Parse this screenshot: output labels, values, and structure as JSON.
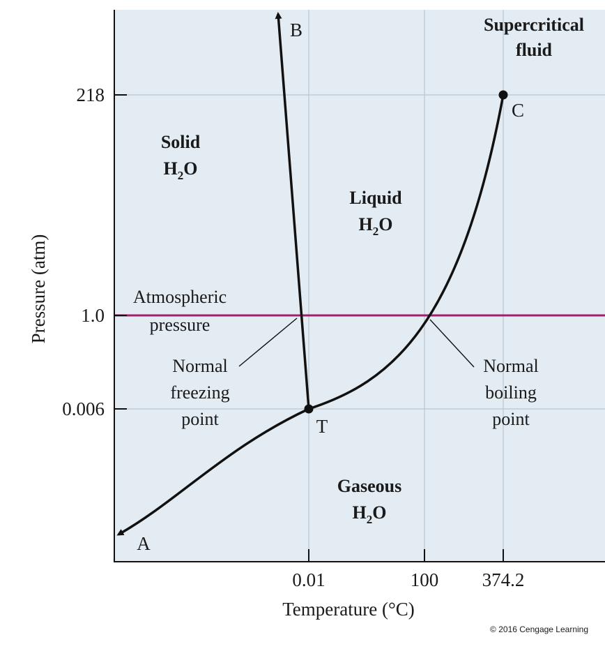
{
  "chart_data": {
    "type": "phase-diagram",
    "substance": "H2O",
    "y_axis": {
      "label": "Pressure (atm)",
      "ticks": [
        "218",
        "1.0",
        "0.006"
      ]
    },
    "x_axis": {
      "label": "Temperature (°C)",
      "ticks": [
        "0.01",
        "100",
        "374.2"
      ]
    },
    "regions": {
      "solid": {
        "line1": "Solid",
        "formula_main": "H",
        "formula_sub": "2",
        "formula_end": "O"
      },
      "liquid": {
        "line1": "Liquid",
        "formula_main": "H",
        "formula_sub": "2",
        "formula_end": "O"
      },
      "gas": {
        "line1": "Gaseous",
        "formula_main": "H",
        "formula_sub": "2",
        "formula_end": "O"
      },
      "supercritical": {
        "line1": "Supercritical",
        "line2": "fluid"
      }
    },
    "points": {
      "triple": {
        "label": "T",
        "temperature": 0.01,
        "pressure": 0.006
      },
      "critical": {
        "label": "C",
        "temperature": 374.2,
        "pressure": 218
      },
      "curve_a_end": {
        "label": "A"
      },
      "curve_b_end": {
        "label": "B"
      }
    },
    "reference_line": {
      "line1": "Atmospheric",
      "line2": "pressure",
      "pressure": 1.0,
      "color": "#a0206e"
    },
    "annotations": {
      "freezing": {
        "line1": "Normal",
        "line2": "freezing",
        "line3": "point",
        "temperature": 0
      },
      "boiling": {
        "line1": "Normal",
        "line2": "boiling",
        "line3": "point",
        "temperature": 100
      }
    },
    "background_color": "#e3ecf3",
    "copyright": "© 2016 Cengage Learning"
  }
}
